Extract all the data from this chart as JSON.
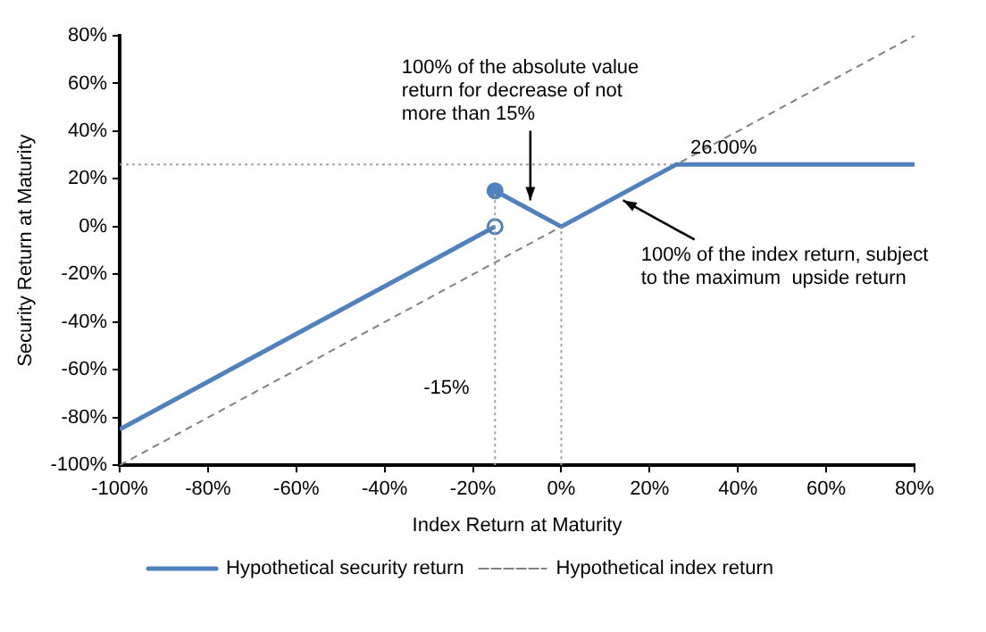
{
  "chart_data": {
    "type": "line",
    "xlabel": "Index Return at Maturity",
    "ylabel": "Security Return at Maturity",
    "xlim": [
      -100,
      80
    ],
    "ylim": [
      -100,
      80
    ],
    "xticks": [
      {
        "value": -100,
        "label": "-100%"
      },
      {
        "value": -80,
        "label": "-80%"
      },
      {
        "value": -60,
        "label": "-60%"
      },
      {
        "value": -40,
        "label": "-40%"
      },
      {
        "value": -20,
        "label": "-20%"
      },
      {
        "value": 0,
        "label": "0%"
      },
      {
        "value": 20,
        "label": "20%"
      },
      {
        "value": 40,
        "label": "40%"
      },
      {
        "value": 60,
        "label": "60%"
      },
      {
        "value": 80,
        "label": "80%"
      }
    ],
    "yticks": [
      {
        "value": -100,
        "label": "-100%"
      },
      {
        "value": -80,
        "label": "-80%"
      },
      {
        "value": -60,
        "label": "-60%"
      },
      {
        "value": -40,
        "label": "-40%"
      },
      {
        "value": -20,
        "label": "-20%"
      },
      {
        "value": 0,
        "label": "0%"
      },
      {
        "value": 20,
        "label": "20%"
      },
      {
        "value": 40,
        "label": "40%"
      },
      {
        "value": 60,
        "label": "60%"
      },
      {
        "value": 80,
        "label": "80%"
      }
    ],
    "grid": false,
    "legend": "bottom",
    "marker": "none",
    "series": [
      {
        "type": "line",
        "color": "#a0a0a0",
        "line_style": "dotted",
        "x": [
          -100,
          26
        ],
        "values": [
          26,
          26
        ]
      },
      {
        "type": "line",
        "color": "#a0a0a0",
        "line_style": "dotted",
        "x": [
          -15,
          -15
        ],
        "values": [
          -100,
          15
        ]
      },
      {
        "type": "line",
        "color": "#a0a0a0",
        "line_style": "dotted",
        "x": [
          0,
          0
        ],
        "values": [
          -100,
          0
        ]
      },
      {
        "name": "Hypothetical security return",
        "color": "#4f81bd",
        "line_style": "solid",
        "x": [
          -100,
          -15,
          null,
          -15,
          0,
          26,
          80
        ],
        "values": [
          -85,
          0,
          null,
          15,
          0,
          26,
          26
        ]
      },
      {
        "name": "Hypothetical index return",
        "color": "#808080",
        "line_style": "dashed",
        "x": [
          -100,
          80
        ],
        "values": [
          -100,
          80
        ]
      },
      {
        "type": "scatter",
        "marker": "circle",
        "color": "#4f81bd",
        "colors": [
          "#4f81bd",
          "#ffffff"
        ],
        "x": [
          -15,
          -15
        ],
        "values": [
          15,
          0
        ]
      }
    ],
    "annotations": [
      {
        "text": "100% of the absolute value return for decrease of not more than 15%",
        "x": -7,
        "y": 8
      },
      {
        "text": "100% of the index return, subject to the maximum  upside return",
        "x": 14,
        "y": 14
      },
      {
        "text": "26.00%",
        "x": 26,
        "y": 26
      },
      {
        "text": "-15%",
        "x": -15,
        "y": -70
      }
    ]
  }
}
